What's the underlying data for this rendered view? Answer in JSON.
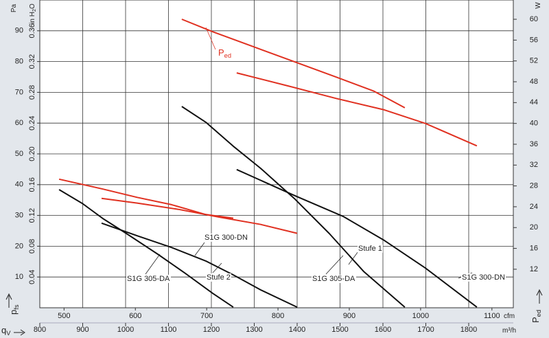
{
  "chart_data": {
    "type": "line",
    "y_label": {
      "text": "Pa"
    },
    "y3_label": {
      "text": "in H",
      "sub": "2",
      "tail": "O"
    },
    "y2_label": {
      "text": "W"
    },
    "x_label": {
      "text": "m³/h"
    },
    "x2_label": {
      "text": "cfm"
    },
    "x_symbol": {
      "text": "q",
      "sub": "V"
    },
    "y_symbol": {
      "text": "p",
      "sub": "fs"
    },
    "y2_symbol": {
      "text": "P",
      "sub": "ed"
    },
    "xlim": [
      800,
      1904
    ],
    "xticks": [
      800,
      900,
      1000,
      1100,
      1200,
      1300,
      1400,
      1500,
      1600,
      1700,
      1800
    ],
    "x2lim": [
      466,
      1130
    ],
    "x2ticks": [
      500,
      600,
      700,
      800,
      900,
      1000,
      1100
    ],
    "ylim": [
      0,
      100
    ],
    "yticks": [
      10,
      20,
      30,
      40,
      50,
      60,
      70,
      80,
      90
    ],
    "y3lim": [
      0,
      0.4
    ],
    "y3ticks": [
      0.04,
      0.08,
      0.12,
      0.16,
      {
        "value": 0.2,
        "label": "0.20"
      },
      0.24,
      0.28,
      0.32,
      0.36
    ],
    "y2lim": [
      4.6,
      63.7
    ],
    "y2ticks": [
      12,
      16,
      20,
      24,
      28,
      32,
      36,
      40,
      44,
      48,
      52,
      56,
      60
    ],
    "grid": true,
    "series": [
      {
        "color": "#111111",
        "x": [
          845,
          899,
          947,
          1002,
          1075,
          1139,
          1203,
          1251
        ],
        "values": [
          38.4,
          33.9,
          29.0,
          24.1,
          17.4,
          11.2,
          4.7,
          0.2
        ]
      },
      {
        "color": "#111111",
        "x": [
          944,
          1027,
          1107,
          1187,
          1251,
          1315,
          1400
        ],
        "values": [
          27.5,
          23.4,
          19.6,
          15.2,
          10.7,
          5.8,
          0.2
        ]
      },
      {
        "color": "#111111",
        "x": [
          1131,
          1187,
          1251,
          1315,
          1395,
          1475,
          1555,
          1651
        ],
        "values": [
          65.4,
          60.3,
          52.5,
          45.3,
          35.3,
          24.1,
          11.8,
          0.2
        ]
      },
      {
        "color": "#111111",
        "x": [
          1259,
          1395,
          1507,
          1603,
          1699,
          1819
        ],
        "values": [
          44.9,
          36.4,
          29.7,
          21.9,
          12.9,
          0.2
        ]
      },
      {
        "color": "#e03020",
        "axis": "y2",
        "x": [
          845,
          947,
          1027,
          1107,
          1187,
          1251
        ],
        "values": [
          29.3,
          27.4,
          25.8,
          24.4,
          22.5,
          21.8
        ]
      },
      {
        "color": "#e03020",
        "axis": "y2",
        "x": [
          944,
          1027,
          1123,
          1219,
          1315,
          1400
        ],
        "values": [
          25.6,
          24.7,
          23.5,
          22.0,
          20.6,
          18.9
        ]
      },
      {
        "color": "#e03020",
        "axis": "y2",
        "x": [
          1131,
          1203,
          1299,
          1395,
          1491,
          1579,
          1651
        ],
        "values": [
          60.0,
          57.6,
          54.7,
          51.8,
          48.9,
          46.2,
          43.0
        ]
      },
      {
        "color": "#e03020",
        "axis": "y2",
        "x": [
          1259,
          1379,
          1491,
          1603,
          1699,
          1819
        ],
        "values": [
          49.7,
          47.2,
          44.8,
          42.6,
          40.0,
          35.7
        ]
      }
    ],
    "annotations": [
      {
        "text": "P",
        "sub": "ed"
      },
      {
        "text": "S1G 300-DN"
      },
      {
        "text": "S1G 305-DA"
      },
      {
        "text": "Stufe 2"
      },
      {
        "text": "Stufe 1"
      },
      {
        "text": "S1G 305-DA"
      },
      {
        "text": "S1G 300-DN"
      }
    ]
  }
}
